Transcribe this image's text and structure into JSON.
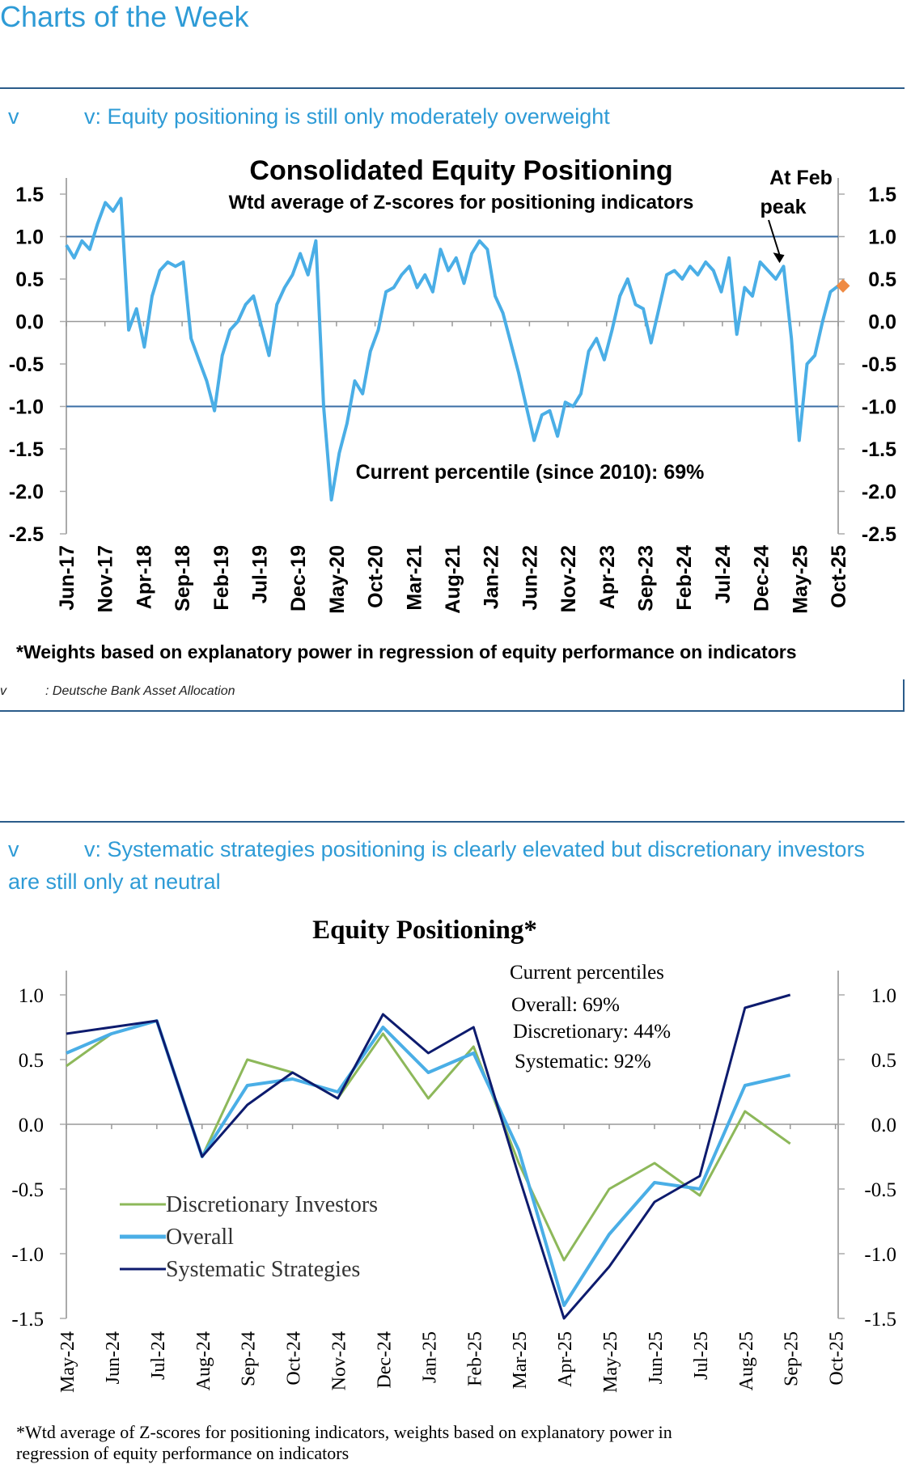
{
  "page": {
    "title": "Charts of the Week"
  },
  "figure1": {
    "caption_prefix": "v",
    "caption": "v: Equity positioning is still only moderately overweight",
    "footnote": "*Weights based on explanatory power in regression of equity performance on indicators",
    "source_prefix": "v",
    "source": ": Deutsche Bank Asset Allocation"
  },
  "figure2": {
    "caption_prefix": "v",
    "caption": "v: Systematic strategies positioning is clearly elevated but discretionary investors are still only at neutral",
    "footnote_line1": "*Wtd average of Z-scores for positioning indicators, weights based on explanatory power in",
    "footnote_line2": "regression of equity performance on indicators"
  },
  "chart_data": [
    {
      "type": "line",
      "title": "Consolidated Equity Positioning",
      "subtitle": "Wtd average of Z-scores for positioning indicators",
      "x_ticks": [
        "Jun-17",
        "Nov-17",
        "Apr-18",
        "Sep-18",
        "Feb-19",
        "Jul-19",
        "Dec-19",
        "May-20",
        "Oct-20",
        "Mar-21",
        "Aug-21",
        "Jan-22",
        "Jun-22",
        "Nov-22",
        "Apr-23",
        "Sep-23",
        "Feb-24",
        "Jul-24",
        "Dec-24",
        "May-25",
        "Oct-25"
      ],
      "y_ticks": [
        "1.5",
        "1.0",
        "0.5",
        "0.0",
        "-0.5",
        "-1.0",
        "-1.5",
        "-2.0",
        "-2.5"
      ],
      "ylim": [
        -2.5,
        1.5
      ],
      "reference_lines": [
        1.0,
        -1.0
      ],
      "annotations": {
        "peak_label_line1": "At Feb",
        "peak_label_line2": "peak",
        "percentile_text": "Current percentile (since 2010): 69%"
      },
      "current_marker": {
        "x": "Sep-25",
        "y": 0.42,
        "color": "#ef8a43"
      },
      "colors": {
        "line": "#4aaee6",
        "reference": "#3a6ea5"
      },
      "series": [
        {
          "x": [
            "Jun-17",
            "Jul-17",
            "Aug-17",
            "Sep-17",
            "Oct-17",
            "Nov-17",
            "Dec-17",
            "Jan-18",
            "Feb-18",
            "Mar-18",
            "Apr-18",
            "May-18",
            "Jun-18",
            "Jul-18",
            "Aug-18",
            "Sep-18",
            "Oct-18",
            "Nov-18",
            "Dec-18",
            "Jan-19",
            "Feb-19",
            "Mar-19",
            "Apr-19",
            "May-19",
            "Jun-19",
            "Jul-19",
            "Aug-19",
            "Sep-19",
            "Oct-19",
            "Nov-19",
            "Dec-19",
            "Jan-20",
            "Feb-20",
            "Mar-20",
            "Apr-20",
            "May-20",
            "Jun-20",
            "Jul-20",
            "Aug-20",
            "Sep-20",
            "Oct-20",
            "Nov-20",
            "Dec-20",
            "Jan-21",
            "Feb-21",
            "Mar-21",
            "Apr-21",
            "May-21",
            "Jun-21",
            "Jul-21",
            "Aug-21",
            "Sep-21",
            "Oct-21",
            "Nov-21",
            "Dec-21",
            "Jan-22",
            "Feb-22",
            "Mar-22",
            "Apr-22",
            "May-22",
            "Jun-22",
            "Jul-22",
            "Aug-22",
            "Sep-22",
            "Oct-22",
            "Nov-22",
            "Dec-22",
            "Jan-23",
            "Feb-23",
            "Mar-23",
            "Apr-23",
            "May-23",
            "Jun-23",
            "Jul-23",
            "Aug-23",
            "Sep-23",
            "Oct-23",
            "Nov-23",
            "Dec-23",
            "Jan-24",
            "Feb-24",
            "Mar-24",
            "Apr-24",
            "May-24",
            "Jun-24",
            "Jul-24",
            "Aug-24",
            "Sep-24",
            "Oct-24",
            "Nov-24",
            "Dec-24",
            "Jan-25",
            "Feb-25",
            "Mar-25",
            "Apr-25",
            "May-25",
            "Jun-25",
            "Jul-25",
            "Aug-25",
            "Sep-25"
          ],
          "values": [
            0.9,
            0.75,
            0.95,
            0.85,
            1.15,
            1.4,
            1.3,
            1.45,
            -0.1,
            0.15,
            -0.3,
            0.3,
            0.6,
            0.7,
            0.65,
            0.7,
            -0.2,
            -0.45,
            -0.7,
            -1.05,
            -0.4,
            -0.1,
            0.0,
            0.2,
            0.3,
            -0.05,
            -0.4,
            0.2,
            0.4,
            0.55,
            0.8,
            0.55,
            0.95,
            -1.0,
            -2.1,
            -1.55,
            -1.2,
            -0.7,
            -0.85,
            -0.35,
            -0.1,
            0.35,
            0.4,
            0.55,
            0.65,
            0.4,
            0.55,
            0.35,
            0.85,
            0.6,
            0.75,
            0.45,
            0.8,
            0.95,
            0.85,
            0.3,
            0.1,
            -0.25,
            -0.6,
            -1.0,
            -1.4,
            -1.1,
            -1.05,
            -1.35,
            -0.95,
            -1.0,
            -0.85,
            -0.35,
            -0.2,
            -0.45,
            -0.1,
            0.3,
            0.5,
            0.2,
            0.15,
            -0.25,
            0.15,
            0.55,
            0.6,
            0.5,
            0.65,
            0.55,
            0.7,
            0.6,
            0.35,
            0.75,
            -0.15,
            0.4,
            0.3,
            0.7,
            0.6,
            0.5,
            0.65,
            -0.2,
            -1.4,
            -0.5,
            -0.4,
            0.0,
            0.35,
            0.42
          ]
        }
      ]
    },
    {
      "type": "line",
      "title": "Equity Positioning*",
      "x_ticks": [
        "May-24",
        "Jun-24",
        "Jul-24",
        "Aug-24",
        "Sep-24",
        "Oct-24",
        "Nov-24",
        "Dec-24",
        "Jan-25",
        "Feb-25",
        "Mar-25",
        "Apr-25",
        "May-25",
        "Jun-25",
        "Jul-25",
        "Aug-25",
        "Sep-25",
        "Oct-25"
      ],
      "y_ticks": [
        "1.0",
        "0.5",
        "0.0",
        "-0.5",
        "-1.0",
        "-1.5"
      ],
      "ylim": [
        -1.5,
        1.0
      ],
      "annotations": {
        "percentiles_title": "Current percentiles",
        "overall": "Overall: 69%",
        "discretionary": "Discretionary: 44%",
        "systematic": "Systematic: 92%"
      },
      "x": [
        "May-24",
        "Jun-24",
        "Jul-24",
        "Aug-24",
        "Sep-24",
        "Oct-24",
        "Nov-24",
        "Dec-24",
        "Jan-25",
        "Feb-25",
        "Mar-25",
        "Apr-25",
        "May-25",
        "Jun-25",
        "Jul-25",
        "Aug-25",
        "Sep-25"
      ],
      "series": [
        {
          "name": "Discretionary Investors",
          "color": "#8db85a",
          "values": [
            0.45,
            0.7,
            0.8,
            -0.25,
            0.5,
            0.4,
            0.2,
            0.7,
            0.2,
            0.6,
            -0.3,
            -1.05,
            -0.5,
            -0.3,
            -0.55,
            0.1,
            -0.15
          ]
        },
        {
          "name": "Overall",
          "color": "#4aaee6",
          "values": [
            0.55,
            0.7,
            0.8,
            -0.25,
            0.3,
            0.35,
            0.25,
            0.75,
            0.4,
            0.55,
            -0.2,
            -1.4,
            -0.85,
            -0.45,
            -0.5,
            0.3,
            0.38
          ]
        },
        {
          "name": "Systematic Strategies",
          "color": "#0d1b6e",
          "values": [
            0.7,
            0.75,
            0.8,
            -0.25,
            0.15,
            0.4,
            0.2,
            0.85,
            0.55,
            0.75,
            -0.4,
            -1.5,
            -1.1,
            -0.6,
            -0.4,
            0.9,
            1.0
          ]
        }
      ]
    }
  ]
}
